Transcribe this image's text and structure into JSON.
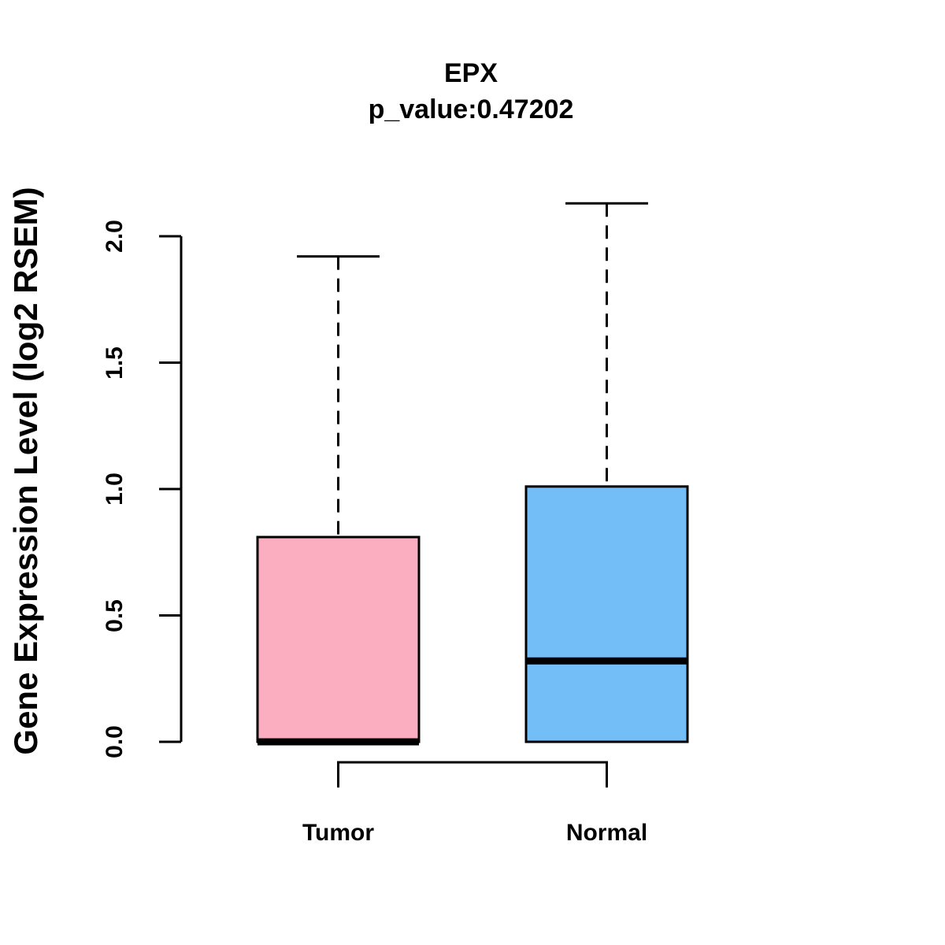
{
  "chart_data": {
    "type": "boxplot",
    "title": "EPX",
    "subtitle": "p_value:0.47202",
    "ylabel": "Gene Expression Level (log2 RSEM)",
    "xlabel": "",
    "categories": [
      "Tumor",
      "Normal"
    ],
    "series": [
      {
        "name": "Tumor",
        "min": 0.0,
        "q1": 0.0,
        "median": 0.0,
        "q3": 0.81,
        "max": 1.92,
        "fill": "#FCAEC1"
      },
      {
        "name": "Normal",
        "min": 0.0,
        "q1": 0.0,
        "median": 0.32,
        "q3": 1.01,
        "max": 2.13,
        "fill": "#74BEF8"
      }
    ],
    "yticks": [
      0.0,
      0.5,
      1.0,
      1.5,
      2.0
    ],
    "ytick_labels": [
      "0.0",
      "0.5",
      "1.0",
      "1.5",
      "2.0"
    ],
    "ylim": [
      0.0,
      2.0
    ],
    "grid": false,
    "legend": "none",
    "comparison_bracket": true,
    "line_color": "#000000",
    "background_color": "#FFFFFF"
  }
}
